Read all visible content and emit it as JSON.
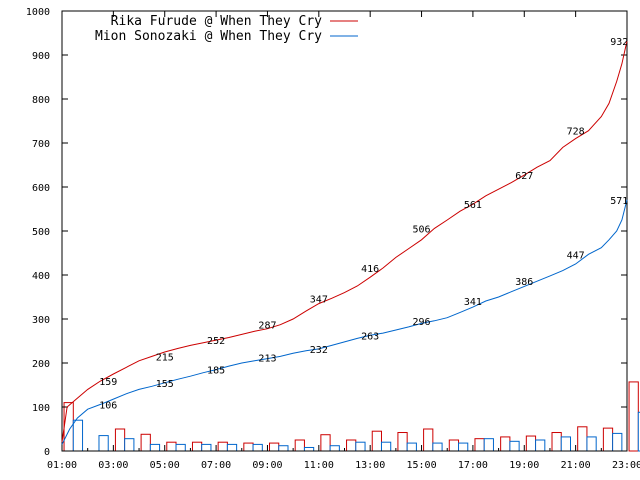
{
  "chart_data": {
    "type": "line",
    "ylim": [
      0,
      1000
    ],
    "yticks": [
      0,
      100,
      200,
      300,
      400,
      500,
      600,
      700,
      800,
      900,
      1000
    ],
    "xlim_hours": [
      1,
      23
    ],
    "xticks": [
      "01:00",
      "03:00",
      "05:00",
      "07:00",
      "09:00",
      "11:00",
      "13:00",
      "15:00",
      "17:00",
      "19:00",
      "21:00",
      "23:00"
    ],
    "legend_position": "top-left",
    "series": [
      {
        "name": "Rika Furude @ When They Cry",
        "color": "#cc0000",
        "cumulative_x": [
          1.0,
          1.2,
          1.5,
          2.0,
          2.5,
          3.0,
          3.5,
          4.0,
          4.5,
          5.0,
          5.5,
          6.0,
          6.5,
          7.0,
          7.5,
          8.0,
          8.5,
          9.0,
          9.5,
          10.0,
          10.5,
          11.0,
          11.5,
          12.0,
          12.5,
          13.0,
          13.5,
          14.0,
          14.5,
          15.0,
          15.5,
          16.0,
          16.5,
          17.0,
          17.5,
          18.0,
          18.5,
          19.0,
          19.5,
          20.0,
          20.5,
          21.0,
          21.5,
          22.0,
          22.3,
          22.6,
          22.8,
          23.0
        ],
        "cumulative_y": [
          20,
          100,
          115,
          140,
          159,
          175,
          190,
          205,
          215,
          225,
          233,
          240,
          246,
          252,
          258,
          265,
          272,
          278,
          287,
          300,
          318,
          335,
          347,
          360,
          375,
          395,
          416,
          440,
          460,
          480,
          506,
          525,
          545,
          561,
          580,
          595,
          610,
          627,
          645,
          660,
          690,
          710,
          728,
          760,
          790,
          840,
          880,
          932
        ],
        "labels": [
          {
            "x": 2.8,
            "y": 159,
            "text": "159"
          },
          {
            "x": 5.0,
            "y": 215,
            "text": "215"
          },
          {
            "x": 7.0,
            "y": 252,
            "text": "252"
          },
          {
            "x": 9.0,
            "y": 287,
            "text": "287"
          },
          {
            "x": 11.0,
            "y": 347,
            "text": "347"
          },
          {
            "x": 13.0,
            "y": 416,
            "text": "416"
          },
          {
            "x": 15.0,
            "y": 506,
            "text": "506"
          },
          {
            "x": 17.0,
            "y": 561,
            "text": "561"
          },
          {
            "x": 19.0,
            "y": 627,
            "text": "627"
          },
          {
            "x": 21.0,
            "y": 728,
            "text": "728"
          },
          {
            "x": 22.7,
            "y": 932,
            "text": "932"
          }
        ],
        "hourly_values": [
          110,
          0,
          50,
          38,
          20,
          20,
          20,
          18,
          18,
          25,
          37,
          25,
          45,
          42,
          50,
          25,
          28,
          32,
          34,
          42,
          55,
          52,
          157
        ]
      },
      {
        "name": "Mion Sonozaki @ When They Cry",
        "color": "#0066cc",
        "cumulative_x": [
          1.0,
          1.3,
          1.6,
          2.0,
          2.5,
          3.0,
          3.5,
          4.0,
          4.5,
          5.0,
          5.5,
          6.0,
          6.5,
          7.0,
          7.5,
          8.0,
          8.5,
          9.0,
          9.5,
          10.0,
          10.5,
          11.0,
          11.5,
          12.0,
          12.5,
          13.0,
          13.5,
          14.0,
          14.5,
          15.0,
          15.5,
          16.0,
          16.5,
          17.0,
          17.5,
          18.0,
          18.5,
          19.0,
          19.5,
          20.0,
          20.5,
          21.0,
          21.5,
          22.0,
          22.3,
          22.6,
          22.8,
          23.0
        ],
        "cumulative_y": [
          15,
          50,
          75,
          95,
          106,
          118,
          130,
          140,
          147,
          155,
          163,
          170,
          178,
          185,
          193,
          200,
          205,
          210,
          215,
          222,
          228,
          232,
          240,
          248,
          256,
          263,
          268,
          275,
          282,
          290,
          296,
          303,
          315,
          327,
          341,
          350,
          362,
          374,
          386,
          398,
          410,
          425,
          447,
          462,
          480,
          500,
          525,
          571
        ],
        "labels": [
          {
            "x": 2.8,
            "y": 106,
            "text": "106"
          },
          {
            "x": 5.0,
            "y": 155,
            "text": "155"
          },
          {
            "x": 7.0,
            "y": 185,
            "text": "185"
          },
          {
            "x": 9.0,
            "y": 213,
            "text": "213"
          },
          {
            "x": 11.0,
            "y": 232,
            "text": "232"
          },
          {
            "x": 13.0,
            "y": 263,
            "text": "263"
          },
          {
            "x": 15.0,
            "y": 296,
            "text": "296"
          },
          {
            "x": 17.0,
            "y": 341,
            "text": "341"
          },
          {
            "x": 19.0,
            "y": 386,
            "text": "386"
          },
          {
            "x": 21.0,
            "y": 447,
            "text": "447"
          },
          {
            "x": 22.7,
            "y": 571,
            "text": "571"
          }
        ],
        "hourly_values": [
          70,
          35,
          28,
          15,
          15,
          15,
          15,
          15,
          12,
          8,
          12,
          20,
          20,
          18,
          18,
          18,
          28,
          22,
          25,
          32,
          32,
          40,
          88
        ]
      }
    ]
  }
}
